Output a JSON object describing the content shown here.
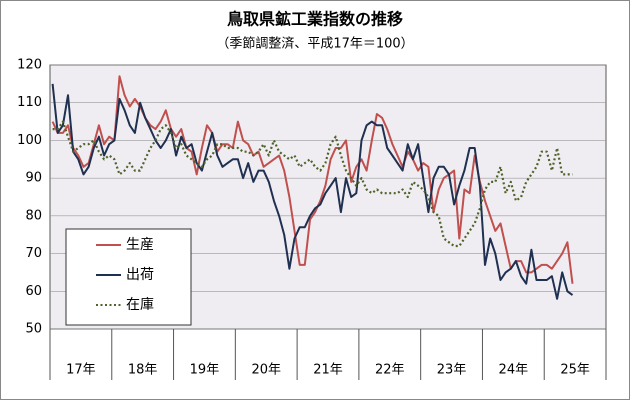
{
  "chart_data": {
    "type": "line",
    "title": "鳥取県鉱工業指数の推移",
    "subtitle": "（季節調整済、平成17年＝100）",
    "categories": [
      "17年",
      null,
      null,
      null,
      null,
      null,
      null,
      null,
      null,
      null,
      null,
      null,
      "18年",
      null,
      null,
      null,
      null,
      null,
      null,
      null,
      null,
      null,
      null,
      null,
      "19年",
      null,
      null,
      null,
      null,
      null,
      null,
      null,
      null,
      null,
      null,
      null,
      "20年",
      null,
      null,
      null,
      null,
      null,
      null,
      null,
      null,
      null,
      null,
      null,
      "21年",
      null,
      null,
      null,
      null,
      null,
      null,
      null,
      null,
      null,
      null,
      null,
      "22年",
      null,
      null,
      null,
      null,
      null,
      null,
      null,
      null,
      null,
      null,
      null,
      "23年",
      null,
      null,
      null,
      null,
      null,
      null,
      null,
      null,
      null,
      null,
      null,
      "24年",
      null,
      null,
      null,
      null,
      null,
      null,
      null,
      null,
      null,
      null,
      null,
      "25年",
      null,
      null,
      null,
      null,
      null,
      null,
      null,
      null,
      null,
      null,
      null
    ],
    "series": [
      {
        "name": "生産",
        "color": "#c0504d",
        "style": "solid",
        "values": [
          105,
          102,
          102,
          104,
          98,
          96,
          93,
          94,
          99,
          104,
          99,
          101,
          100,
          117,
          112,
          109,
          111,
          109,
          106,
          104,
          103,
          105,
          108,
          103,
          101,
          103,
          98,
          97,
          91,
          98,
          104,
          102,
          97,
          99,
          99,
          98,
          105,
          100,
          99,
          96,
          97,
          93,
          94,
          95,
          96,
          92,
          85,
          76,
          67,
          67,
          79,
          81,
          84,
          88,
          95,
          98,
          98,
          100,
          89,
          93,
          95,
          92,
          100,
          107,
          106,
          103,
          99,
          96,
          93,
          97,
          95,
          92,
          94,
          93,
          81,
          87,
          90,
          91,
          92,
          74,
          87,
          86,
          96,
          89,
          84,
          80,
          76,
          78,
          72,
          66,
          68,
          68,
          65,
          65,
          66,
          67,
          67,
          66,
          68,
          70,
          73,
          62,
          null,
          null,
          null,
          null,
          null,
          null
        ]
      },
      {
        "name": "出荷",
        "color": "#1f3050",
        "style": "solid",
        "values": [
          115,
          102,
          104,
          112,
          97,
          95,
          91,
          93,
          98,
          101,
          96,
          99,
          100,
          111,
          108,
          104,
          102,
          110,
          106,
          103,
          100,
          98,
          100,
          103,
          96,
          101,
          98,
          99,
          94,
          92,
          97,
          102,
          96,
          93,
          94,
          95,
          95,
          90,
          94,
          89,
          92,
          92,
          89,
          84,
          80,
          75,
          66,
          74,
          77,
          77,
          80,
          82,
          83,
          86,
          88,
          90,
          81,
          90,
          85,
          86,
          100,
          104,
          105,
          104,
          104,
          98,
          96,
          94,
          92,
          99,
          95,
          99,
          90,
          81,
          90,
          93,
          93,
          91,
          83,
          88,
          92,
          98,
          98,
          88,
          67,
          74,
          70,
          63,
          65,
          66,
          68,
          64,
          62,
          71,
          63,
          63,
          63,
          64,
          58,
          65,
          60,
          59,
          null,
          null,
          null,
          null,
          null,
          null
        ]
      },
      {
        "name": "在庫",
        "color": "#4f6228",
        "style": "dotted",
        "values": [
          103,
          103,
          105,
          101,
          97,
          98,
          99,
          99,
          100,
          97,
          95,
          96,
          95,
          91,
          92,
          94,
          92,
          92,
          95,
          98,
          100,
          103,
          104,
          102,
          98,
          99,
          96,
          95,
          94,
          93,
          95,
          96,
          99,
          99,
          98,
          98,
          98,
          97,
          97,
          96,
          97,
          99,
          96,
          100,
          97,
          96,
          95,
          96,
          93,
          94,
          95,
          93,
          92,
          94,
          99,
          101,
          96,
          92,
          90,
          88,
          90,
          87,
          86,
          87,
          86,
          86,
          86,
          86,
          87,
          85,
          89,
          88,
          87,
          85,
          81,
          80,
          74,
          73,
          72,
          72,
          74,
          76,
          78,
          82,
          87,
          89,
          89,
          93,
          86,
          89,
          84,
          85,
          89,
          91,
          93,
          97,
          97,
          92,
          98,
          91,
          91,
          91,
          null,
          null,
          null,
          null,
          null,
          null
        ]
      }
    ],
    "ylim": [
      50,
      120
    ],
    "yticks": [
      50,
      60,
      70,
      80,
      90,
      100,
      110,
      120
    ],
    "grid": true,
    "legend": "lower left"
  }
}
